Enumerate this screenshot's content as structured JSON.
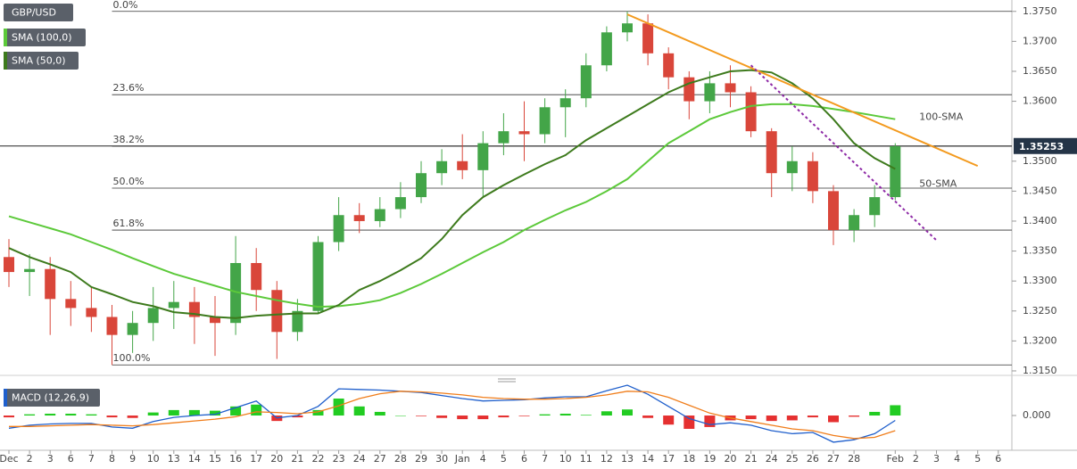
{
  "chart_data": [
    {
      "type": "candlestick",
      "title": "GBP/USD",
      "categories": [
        "Dec",
        "2",
        "3",
        "6",
        "7",
        "8",
        "9",
        "10",
        "13",
        "14",
        "15",
        "16",
        "17",
        "20",
        "21",
        "22",
        "23",
        "24",
        "27",
        "28",
        "29",
        "30",
        "Jan",
        "4",
        "5",
        "6",
        "7",
        "10",
        "11",
        "12",
        "13",
        "14",
        "17",
        "18",
        "19",
        "20",
        "21",
        "24",
        "25",
        "26",
        "27",
        "28",
        null,
        "Feb",
        "2",
        "3",
        "4",
        "5",
        "6"
      ],
      "series": [
        {
          "up_color": "#43a548",
          "down_color": "#d9463a",
          "open": [
            1.334,
            1.3315,
            1.332,
            1.327,
            1.3255,
            1.324,
            1.321,
            1.323,
            1.3255,
            1.3265,
            1.324,
            1.323,
            1.333,
            1.3285,
            1.3215,
            1.325,
            1.3365,
            1.341,
            1.34,
            1.342,
            1.344,
            1.348,
            1.35,
            1.3485,
            1.353,
            1.355,
            1.3545,
            1.359,
            1.3605,
            1.366,
            1.3715,
            1.373,
            1.368,
            1.364,
            1.36,
            1.363,
            1.3615,
            1.355,
            1.348,
            1.35,
            1.345,
            1.3385,
            1.341,
            1.344,
            null,
            null,
            null,
            null,
            null
          ],
          "high": [
            1.337,
            1.3345,
            1.334,
            1.33,
            1.329,
            1.326,
            1.325,
            1.329,
            1.33,
            1.329,
            1.3275,
            1.3375,
            1.3355,
            1.33,
            1.327,
            1.3375,
            1.344,
            1.343,
            1.344,
            1.3465,
            1.35,
            1.352,
            1.3545,
            1.355,
            1.358,
            1.36,
            1.3605,
            1.362,
            1.368,
            1.3725,
            1.375,
            1.3745,
            1.369,
            1.365,
            1.365,
            1.366,
            1.3625,
            1.3555,
            1.3525,
            1.3515,
            1.346,
            1.342,
            1.346,
            1.353,
            null,
            null,
            null,
            null,
            null
          ],
          "low": [
            1.329,
            1.3275,
            1.321,
            1.3225,
            1.3215,
            1.316,
            1.318,
            1.32,
            1.322,
            1.3195,
            1.3175,
            1.321,
            1.325,
            1.317,
            1.32,
            1.3245,
            1.335,
            1.338,
            1.339,
            1.3405,
            1.343,
            1.346,
            1.347,
            1.344,
            1.351,
            1.35,
            1.353,
            1.354,
            1.359,
            1.365,
            1.37,
            1.366,
            1.362,
            1.357,
            1.358,
            1.359,
            1.354,
            1.344,
            1.345,
            1.343,
            1.336,
            1.3365,
            1.339,
            1.3435,
            null,
            null,
            null,
            null,
            null
          ],
          "close": [
            1.3315,
            1.332,
            1.327,
            1.3255,
            1.324,
            1.321,
            1.323,
            1.3255,
            1.3265,
            1.324,
            1.323,
            1.333,
            1.3285,
            1.3215,
            1.325,
            1.3365,
            1.341,
            1.34,
            1.342,
            1.344,
            1.348,
            1.35,
            1.3485,
            1.353,
            1.355,
            1.3545,
            1.359,
            1.3605,
            1.366,
            1.3715,
            1.373,
            1.368,
            1.364,
            1.36,
            1.363,
            1.3615,
            1.355,
            1.348,
            1.35,
            1.345,
            1.3385,
            1.341,
            1.344,
            1.3525,
            null,
            null,
            null,
            null,
            null
          ]
        }
      ],
      "overlays": [
        {
          "name": "SMA (100,0)",
          "label": "100-SMA",
          "color": "#5cc93a",
          "values": [
            1.3408,
            1.3398,
            1.3388,
            1.3378,
            1.3365,
            1.3352,
            1.3338,
            1.3325,
            1.3312,
            1.3302,
            1.3292,
            1.3282,
            1.3275,
            1.3268,
            1.3262,
            1.3257,
            1.3258,
            1.3262,
            1.3268,
            1.328,
            1.3295,
            1.3312,
            1.333,
            1.3348,
            1.3365,
            1.3385,
            1.3402,
            1.3418,
            1.3432,
            1.345,
            1.347,
            1.35,
            1.353,
            1.355,
            1.357,
            1.3582,
            1.3592,
            1.3595,
            1.3595,
            1.3592,
            1.3587,
            1.3582,
            1.3576,
            1.357,
            null,
            null,
            null,
            null,
            null
          ]
        },
        {
          "name": "SMA (50,0)",
          "label": "50-SMA",
          "color": "#3d7a1c",
          "values": [
            1.3355,
            1.334,
            1.3328,
            1.3315,
            1.329,
            1.3278,
            1.3265,
            1.3258,
            1.3248,
            1.3245,
            1.324,
            1.3238,
            1.3242,
            1.3244,
            1.3246,
            1.3246,
            1.326,
            1.3285,
            1.33,
            1.3318,
            1.3338,
            1.337,
            1.341,
            1.344,
            1.346,
            1.3478,
            1.3495,
            1.351,
            1.3535,
            1.3555,
            1.3575,
            1.3595,
            1.3615,
            1.363,
            1.364,
            1.365,
            1.3652,
            1.3648,
            1.363,
            1.3605,
            1.357,
            1.353,
            1.3505,
            1.3487,
            null,
            null,
            null,
            null,
            null
          ]
        }
      ],
      "fib_levels": [
        {
          "label": "0.0%",
          "value": 1.375
        },
        {
          "label": "23.6%",
          "value": 1.3611
        },
        {
          "label": "38.2%",
          "value": 1.3525
        },
        {
          "label": "50.0%",
          "value": 1.3455
        },
        {
          "label": "61.8%",
          "value": 1.3385
        },
        {
          "label": "100.0%",
          "value": 1.316
        }
      ],
      "trendlines": [
        {
          "color": "#f39a1e",
          "dashed": false,
          "start": [
            30,
            1.3745
          ],
          "end": [
            47,
            1.3492
          ]
        },
        {
          "color": "#8e2aa6",
          "dashed": true,
          "start": [
            36,
            1.366
          ],
          "end": [
            45,
            1.3368
          ]
        }
      ],
      "last_price": 1.35253,
      "ylim": [
        1.3144,
        1.3769
      ],
      "yticks": [
        {
          "value": 1.315,
          "label": "1.3150"
        },
        {
          "value": 1.32,
          "label": "1.3200"
        },
        {
          "value": 1.325,
          "label": "1.3250"
        },
        {
          "value": 1.33,
          "label": "1.3300"
        },
        {
          "value": 1.335,
          "label": "1.3350"
        },
        {
          "value": 1.34,
          "label": "1.3400"
        },
        {
          "value": 1.345,
          "label": "1.3450"
        },
        {
          "value": 1.35,
          "label": "1.3500"
        },
        {
          "value": 1.36,
          "label": "1.3600"
        },
        {
          "value": 1.365,
          "label": "1.3650"
        },
        {
          "value": 1.37,
          "label": "1.3700"
        },
        {
          "value": 1.375,
          "label": "1.3750"
        }
      ],
      "grid": false
    },
    {
      "type": "macd",
      "title": "MACD (12,26,9)",
      "title_color": "#1f5fcc",
      "macd_color": "#1f5fcc",
      "signal_color": "#f07d1a",
      "up_color": "#22cc22",
      "down_color": "#e53030",
      "macd": [
        -0.0021,
        -0.0016,
        -0.0014,
        -0.0013,
        -0.0013,
        -0.0019,
        -0.0021,
        -0.001,
        -0.0003,
        0.0,
        0.0002,
        0.0013,
        0.0024,
        -0.0004,
        0.0,
        0.0015,
        0.0044,
        0.0043,
        0.0042,
        0.004,
        0.0038,
        0.0033,
        0.0028,
        0.0024,
        0.0025,
        0.0026,
        0.0029,
        0.0031,
        0.0031,
        0.0041,
        0.005,
        0.0035,
        0.0015,
        -0.0005,
        -0.0015,
        -0.0012,
        -0.0016,
        -0.0025,
        -0.003,
        -0.0028,
        -0.0044,
        -0.004,
        -0.003,
        -0.0008,
        null,
        null,
        null,
        null,
        null
      ],
      "signal": [
        -0.0018,
        -0.0018,
        -0.0017,
        -0.0016,
        -0.0015,
        -0.0016,
        -0.0017,
        -0.0015,
        -0.0012,
        -0.0009,
        -0.0006,
        -0.0002,
        0.0006,
        0.0005,
        0.0003,
        0.0006,
        0.0016,
        0.0028,
        0.0036,
        0.004,
        0.0039,
        0.0037,
        0.0034,
        0.003,
        0.0028,
        0.0027,
        0.0027,
        0.0028,
        0.003,
        0.0034,
        0.004,
        0.0039,
        0.003,
        0.0017,
        0.0004,
        -0.0004,
        -0.001,
        -0.0016,
        -0.0022,
        -0.0025,
        -0.0033,
        -0.0038,
        -0.0036,
        -0.0025,
        null,
        null,
        null,
        null,
        null
      ],
      "histogram": [
        -0.0003,
        0.0002,
        0.0003,
        0.0003,
        0.0002,
        -0.0003,
        -0.0004,
        0.0005,
        0.0009,
        0.0009,
        0.0008,
        0.0015,
        0.0018,
        -0.0009,
        -0.0003,
        0.0009,
        0.0028,
        0.0015,
        0.0006,
        0.0,
        -0.0001,
        -0.0004,
        -0.0006,
        -0.0006,
        -0.0003,
        -0.0001,
        0.0002,
        0.0003,
        0.0001,
        0.0007,
        0.001,
        -0.0004,
        -0.0015,
        -0.0022,
        -0.0019,
        -0.0008,
        -0.0006,
        -0.0009,
        -0.0008,
        -0.0003,
        -0.0011,
        -0.0002,
        0.0006,
        0.0017,
        null,
        null,
        null,
        null,
        null
      ],
      "ylim": [
        -0.005,
        0.0053
      ],
      "yticks": [
        {
          "value": 0,
          "label": "0.000"
        }
      ]
    }
  ]
}
